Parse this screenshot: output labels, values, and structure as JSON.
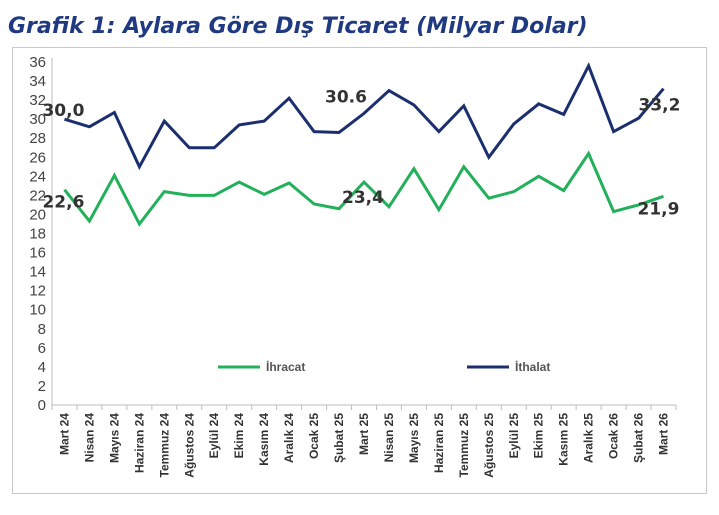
{
  "title": "Grafik 1: Aylara Göre Dış Ticaret (Milyar Dolar)",
  "chart_data": {
    "type": "line",
    "categories": [
      "Mart 24",
      "Nisan 24",
      "Mayıs 24",
      "Haziran 24",
      "Temmuz 24",
      "Ağustos 24",
      "Eylül 24",
      "Ekim 24",
      "Kasım 24",
      "Aralık 24",
      "Ocak 25",
      "Şubat 25",
      "Mart 25",
      "Nisan 25",
      "Mayıs 25",
      "Haziran 25",
      "Temmuz 25",
      "Ağustos 25",
      "Eylül 25",
      "Ekim 25",
      "Kasım 25",
      "Aralık 25",
      "Ocak 26",
      "Şubat 26",
      "Mart 26"
    ],
    "series": [
      {
        "name": "İhracat",
        "color": "#22b05a",
        "values": [
          22.6,
          19.3,
          24.1,
          19.0,
          22.4,
          22.0,
          22.0,
          23.4,
          22.1,
          23.3,
          21.1,
          20.6,
          23.4,
          20.8,
          24.8,
          20.5,
          25.0,
          21.7,
          22.4,
          24.0,
          22.5,
          26.4,
          20.3,
          21.0,
          21.9
        ]
      },
      {
        "name": "İthalat",
        "color": "#1b2f6e",
        "values": [
          30.0,
          29.2,
          30.7,
          25.0,
          29.8,
          27.0,
          27.0,
          29.4,
          29.8,
          32.2,
          28.7,
          28.6,
          30.6,
          33.0,
          31.5,
          28.7,
          31.4,
          26.0,
          29.5,
          31.6,
          30.5,
          35.6,
          28.7,
          30.1,
          33.2
        ]
      }
    ],
    "ylim": [
      0,
      36
    ],
    "yticks": [
      "0",
      "2",
      "4",
      "6",
      "8",
      "10",
      "12",
      "14",
      "16",
      "18",
      "20",
      "22",
      "24",
      "26",
      "28",
      "30",
      "32",
      "34",
      "36"
    ],
    "grid": false,
    "legend_position": "inside-lower",
    "annotations": [
      {
        "series": 0,
        "index": 0,
        "text": "22,6"
      },
      {
        "series": 0,
        "index": 12,
        "text": "23,4"
      },
      {
        "series": 0,
        "index": 24,
        "text": "21,9"
      },
      {
        "series": 1,
        "index": 0,
        "text": "30,0"
      },
      {
        "series": 1,
        "index": 12,
        "text": "30.6"
      },
      {
        "series": 1,
        "index": 24,
        "text": "33,2"
      }
    ]
  }
}
